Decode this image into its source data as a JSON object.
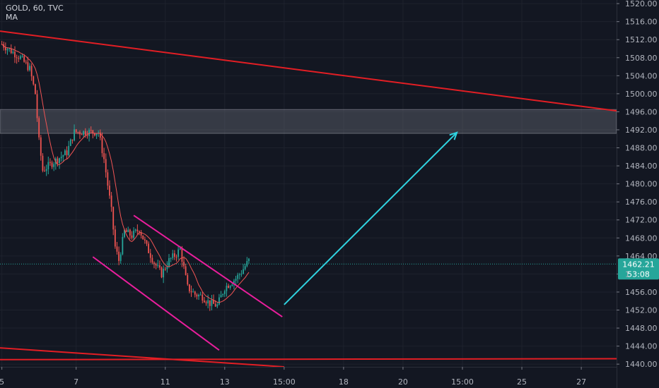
{
  "legend": {
    "symbol_line": "GOLD, 60, TVC",
    "indicator": "MA"
  },
  "price_label": {
    "value": "1462.21",
    "countdown": "53:08",
    "hidden_fragment": "1"
  },
  "colors": {
    "background": "#131722",
    "grid": "#1e222d",
    "candle_up": "#26a69a",
    "candle_down": "#ef5350",
    "ma": "#f05454",
    "trendline": "#e31e24",
    "channel": "#e91e9c",
    "arrow": "#2fd3e0",
    "zone": "#787b86",
    "price_tag": "#26a69a",
    "price_line": "#26a69a"
  },
  "chart_data": {
    "type": "candlestick",
    "symbol": "GOLD",
    "interval": "60",
    "source": "TVC",
    "y_ticks": [
      1520.0,
      1516.0,
      1512.0,
      1508.0,
      1504.0,
      1500.0,
      1496.0,
      1492.0,
      1488.0,
      1484.0,
      1480.0,
      1476.0,
      1472.0,
      1468.0,
      1464.0,
      1460.0,
      1456.0,
      1452.0,
      1448.0,
      1444.0,
      1440.0
    ],
    "y_tick_labels": [
      "1520.00",
      "1516.00",
      "1512.00",
      "1508.00",
      "1504.00",
      "1500.00",
      "1496.00",
      "1492.00",
      "1488.00",
      "1484.00",
      "1480.00",
      "1476.00",
      "1472.00",
      "1468.00",
      "1464.00",
      "",
      "1456.00",
      "1452.00",
      "1448.00",
      "1444.00",
      "1440.00"
    ],
    "ylim": [
      1439.4,
      1520.8
    ],
    "x_ticks": [
      {
        "label": "5",
        "index": 0
      },
      {
        "label": "7",
        "index": 40
      },
      {
        "label": "11",
        "index": 88
      },
      {
        "label": "13",
        "index": 120
      },
      {
        "label": "15:00",
        "index": 152
      },
      {
        "label": "18",
        "index": 184
      },
      {
        "label": "20",
        "index": 216
      },
      {
        "label": "15:00",
        "index": 248
      },
      {
        "label": "25",
        "index": 280
      },
      {
        "label": "27",
        "index": 312
      }
    ],
    "x_range": [
      -1,
      331
    ],
    "current_price": 1462.21,
    "key_points": [
      [
        0,
        1511.0
      ],
      [
        5,
        1509.5
      ],
      [
        10,
        1508.0
      ],
      [
        15,
        1505.5
      ],
      [
        18,
        1500.0
      ],
      [
        20,
        1489.5
      ],
      [
        22,
        1483.0
      ],
      [
        25,
        1484.0
      ],
      [
        30,
        1485.5
      ],
      [
        35,
        1487.0
      ],
      [
        39,
        1491.5
      ],
      [
        45,
        1491.5
      ],
      [
        52,
        1491.5
      ],
      [
        55,
        1485.5
      ],
      [
        59,
        1474.0
      ],
      [
        61,
        1466.0
      ],
      [
        63,
        1463.0
      ],
      [
        66,
        1469.5
      ],
      [
        70,
        1468.5
      ],
      [
        74,
        1470.0
      ],
      [
        78,
        1466.0
      ],
      [
        82,
        1462.5
      ],
      [
        86,
        1460.0
      ],
      [
        90,
        1463.0
      ],
      [
        94,
        1464.5
      ],
      [
        96,
        1465.5
      ],
      [
        100,
        1457.0
      ],
      [
        104,
        1455.5
      ],
      [
        108,
        1455.0
      ],
      [
        112,
        1453.5
      ],
      [
        116,
        1453.0
      ],
      [
        120,
        1457.0
      ],
      [
        123,
        1458.0
      ],
      [
        126,
        1459.0
      ],
      [
        129,
        1460.5
      ],
      [
        133,
        1463.0
      ]
    ],
    "ma_period": 10,
    "drawings": {
      "descending_trendline_top": {
        "from": [
          -1,
          1513.9
        ],
        "to": [
          331,
          1496.2
        ]
      },
      "descending_trendline_bottom": {
        "from": [
          -1,
          1443.6
        ],
        "to": [
          152,
          1439.4
        ]
      },
      "horizontal_support": {
        "from": [
          -1,
          1441.0
        ],
        "to": [
          331,
          1441.2
        ]
      },
      "resistance_zone": {
        "x_from": -1,
        "x_to": 331,
        "y_from": 1491.2,
        "y_to": 1496.5
      },
      "channel_upper": {
        "from": [
          71,
          1473.0
        ],
        "to": [
          151,
          1450.5
        ]
      },
      "channel_lower": {
        "from": [
          49,
          1463.8
        ],
        "to": [
          117,
          1443.1
        ]
      },
      "projection_arrow": {
        "from": [
          152,
          1453.2
        ],
        "to": [
          245,
          1491.4
        ]
      }
    }
  }
}
